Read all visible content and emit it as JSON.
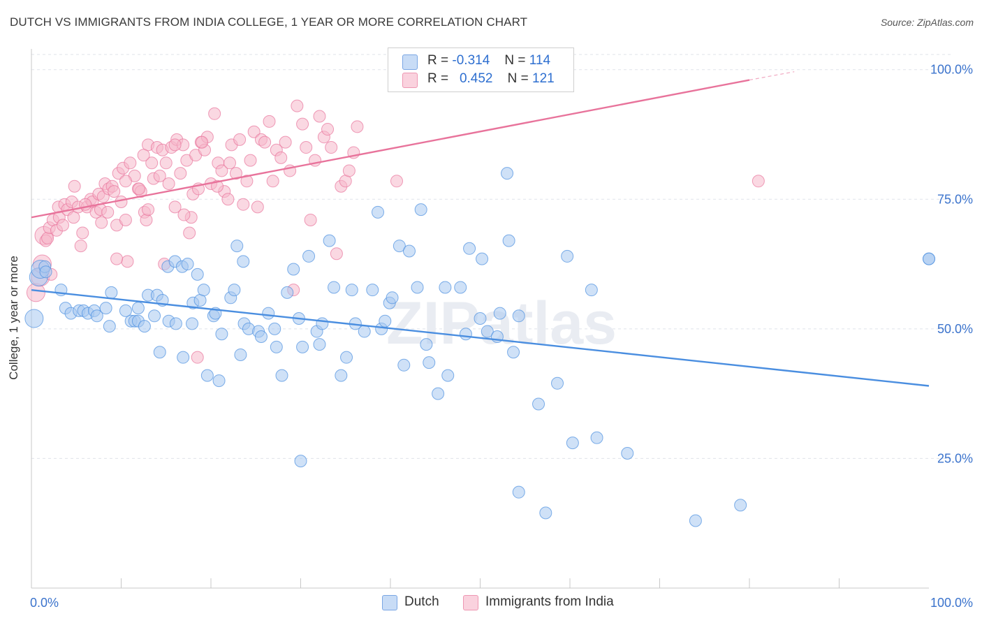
{
  "title": "DUTCH VS IMMIGRANTS FROM INDIA COLLEGE, 1 YEAR OR MORE CORRELATION CHART",
  "source": "Source: ZipAtlas.com",
  "watermark": "ZIPatlas",
  "legend": {
    "rows": [
      {
        "r_label": "R =",
        "r_value": "-0.314",
        "n_label": "N =",
        "n_value": "114",
        "color": "#a8c8f0"
      },
      {
        "r_label": "R =",
        "r_value": "0.452",
        "n_label": "N =",
        "n_value": "121",
        "color": "#f5b8cb"
      }
    ]
  },
  "bottom_legend": [
    {
      "label": "Dutch",
      "color": "#a8c8f0"
    },
    {
      "label": "Immigrants from India",
      "color": "#f5b8cb"
    }
  ],
  "chart_data": {
    "type": "scatter",
    "title": "DUTCH VS IMMIGRANTS FROM INDIA COLLEGE, 1 YEAR OR MORE CORRELATION CHART",
    "xlabel": "",
    "ylabel": "College, 1 year or more",
    "xlim": [
      0,
      100
    ],
    "ylim": [
      0,
      104
    ],
    "x_tick_labels": [
      "0.0%",
      "100.0%"
    ],
    "y_ticks": [
      25,
      50,
      75,
      100
    ],
    "y_tick_labels": [
      "25.0%",
      "50.0%",
      "75.0%",
      "100.0%"
    ],
    "grid": true,
    "legend_position": "top-center",
    "series": [
      {
        "name": "Dutch",
        "color": "#4a8ee0",
        "fill": "#a8c8f0",
        "trend": {
          "x": [
            0,
            100
          ],
          "y": [
            57.5,
            39.0
          ]
        },
        "points": [
          [
            0.3,
            52.0
          ],
          [
            0.8,
            60.0
          ],
          [
            1.0,
            61.5
          ],
          [
            1.5,
            62.0
          ],
          [
            1.6,
            61.0
          ],
          [
            3.3,
            57.5
          ],
          [
            3.8,
            54.0
          ],
          [
            4.4,
            53.0
          ],
          [
            5.3,
            53.5
          ],
          [
            5.8,
            53.5
          ],
          [
            6.3,
            53.0
          ],
          [
            7.0,
            53.5
          ],
          [
            7.3,
            52.5
          ],
          [
            8.3,
            54.0
          ],
          [
            8.7,
            50.5
          ],
          [
            8.9,
            57.0
          ],
          [
            10.5,
            53.5
          ],
          [
            11.1,
            51.5
          ],
          [
            11.5,
            51.5
          ],
          [
            11.9,
            54.0
          ],
          [
            11.9,
            51.5
          ],
          [
            12.6,
            50.5
          ],
          [
            13.0,
            56.5
          ],
          [
            13.7,
            52.5
          ],
          [
            14.0,
            56.5
          ],
          [
            14.3,
            45.5
          ],
          [
            14.6,
            55.5
          ],
          [
            15.2,
            62.0
          ],
          [
            15.3,
            51.5
          ],
          [
            16.0,
            63.0
          ],
          [
            16.1,
            51.0
          ],
          [
            16.8,
            62.0
          ],
          [
            16.9,
            44.5
          ],
          [
            17.4,
            62.5
          ],
          [
            17.9,
            51.0
          ],
          [
            18.0,
            55.0
          ],
          [
            18.5,
            60.5
          ],
          [
            18.8,
            55.5
          ],
          [
            19.2,
            57.5
          ],
          [
            19.6,
            41.0
          ],
          [
            20.3,
            52.5
          ],
          [
            20.5,
            53.0
          ],
          [
            20.9,
            40.0
          ],
          [
            21.2,
            49.0
          ],
          [
            22.2,
            56.0
          ],
          [
            22.6,
            57.5
          ],
          [
            22.9,
            66.0
          ],
          [
            23.3,
            45.0
          ],
          [
            23.6,
            63.0
          ],
          [
            23.7,
            51.0
          ],
          [
            24.2,
            50.0
          ],
          [
            25.3,
            49.5
          ],
          [
            25.6,
            48.5
          ],
          [
            26.4,
            53.0
          ],
          [
            27.1,
            50.0
          ],
          [
            27.3,
            46.5
          ],
          [
            27.9,
            41.0
          ],
          [
            28.5,
            57.0
          ],
          [
            29.2,
            61.5
          ],
          [
            29.8,
            52.0
          ],
          [
            30.2,
            46.5
          ],
          [
            30.9,
            64.0
          ],
          [
            31.8,
            49.5
          ],
          [
            32.1,
            47.0
          ],
          [
            32.4,
            51.0
          ],
          [
            33.2,
            67.0
          ],
          [
            33.7,
            58.0
          ],
          [
            34.5,
            41.0
          ],
          [
            35.1,
            44.5
          ],
          [
            35.7,
            57.5
          ],
          [
            36.1,
            51.0
          ],
          [
            37.1,
            49.5
          ],
          [
            38.0,
            57.5
          ],
          [
            38.6,
            72.5
          ],
          [
            39.0,
            50.0
          ],
          [
            39.4,
            51.5
          ],
          [
            39.9,
            55.0
          ],
          [
            40.2,
            56.0
          ],
          [
            41.0,
            66.0
          ],
          [
            41.5,
            43.0
          ],
          [
            42.1,
            65.0
          ],
          [
            43.0,
            58.0
          ],
          [
            43.4,
            73.0
          ],
          [
            44.0,
            47.0
          ],
          [
            44.3,
            43.5
          ],
          [
            45.3,
            37.5
          ],
          [
            46.1,
            58.0
          ],
          [
            46.4,
            41.0
          ],
          [
            47.8,
            58.0
          ],
          [
            48.4,
            49.0
          ],
          [
            48.8,
            65.5
          ],
          [
            50.0,
            52.0
          ],
          [
            50.2,
            63.5
          ],
          [
            50.8,
            49.5
          ],
          [
            51.9,
            48.5
          ],
          [
            52.2,
            53.0
          ],
          [
            53.0,
            80.0
          ],
          [
            53.2,
            67.0
          ],
          [
            53.7,
            45.5
          ],
          [
            54.3,
            52.5
          ],
          [
            56.5,
            35.5
          ],
          [
            58.6,
            39.5
          ],
          [
            59.7,
            64.0
          ],
          [
            60.3,
            28.0
          ],
          [
            62.4,
            57.5
          ],
          [
            63.0,
            29.0
          ],
          [
            66.4,
            26.0
          ],
          [
            54.3,
            18.5
          ],
          [
            57.3,
            14.5
          ],
          [
            74.0,
            13.0
          ],
          [
            79.0,
            16.0
          ],
          [
            100.0,
            63.5
          ],
          [
            30.0,
            24.5
          ],
          [
            100.0,
            63.5
          ]
        ]
      },
      {
        "name": "Immigrants from India",
        "color": "#e8739b",
        "fill": "#f5b8cb",
        "trend": {
          "x": [
            0,
            80
          ],
          "y": [
            71.5,
            98.0
          ]
        },
        "trend_dashed": {
          "x": [
            80,
            85
          ],
          "y": [
            98.0,
            99.6
          ]
        },
        "points": [
          [
            0.5,
            57.0
          ],
          [
            1.0,
            60.0
          ],
          [
            1.2,
            62.5
          ],
          [
            1.4,
            68.0
          ],
          [
            1.6,
            67.0
          ],
          [
            1.8,
            67.5
          ],
          [
            2.0,
            69.5
          ],
          [
            2.4,
            71.0
          ],
          [
            2.8,
            69.0
          ],
          [
            3.0,
            73.5
          ],
          [
            3.1,
            71.5
          ],
          [
            3.5,
            70.0
          ],
          [
            3.7,
            74.0
          ],
          [
            4.0,
            73.0
          ],
          [
            4.5,
            74.5
          ],
          [
            4.7,
            71.5
          ],
          [
            4.8,
            77.5
          ],
          [
            5.2,
            73.5
          ],
          [
            5.5,
            66.0
          ],
          [
            5.7,
            68.5
          ],
          [
            6.2,
            73.5
          ],
          [
            6.6,
            75.0
          ],
          [
            6.8,
            74.5
          ],
          [
            7.2,
            72.5
          ],
          [
            7.5,
            76.0
          ],
          [
            7.7,
            73.0
          ],
          [
            8.0,
            75.5
          ],
          [
            8.2,
            78.0
          ],
          [
            8.6,
            77.0
          ],
          [
            9.0,
            77.5
          ],
          [
            9.2,
            76.5
          ],
          [
            9.5,
            70.0
          ],
          [
            9.7,
            80.0
          ],
          [
            10.0,
            74.5
          ],
          [
            10.2,
            81.0
          ],
          [
            10.5,
            71.0
          ],
          [
            10.7,
            63.0
          ],
          [
            11.0,
            82.0
          ],
          [
            11.5,
            79.5
          ],
          [
            11.9,
            77.0
          ],
          [
            12.2,
            76.5
          ],
          [
            12.6,
            72.5
          ],
          [
            12.8,
            71.0
          ],
          [
            13.0,
            85.5
          ],
          [
            13.4,
            82.0
          ],
          [
            13.6,
            79.0
          ],
          [
            14.0,
            85.0
          ],
          [
            14.3,
            79.5
          ],
          [
            14.6,
            84.5
          ],
          [
            15.0,
            82.0
          ],
          [
            15.3,
            78.0
          ],
          [
            15.6,
            85.0
          ],
          [
            16.0,
            73.5
          ],
          [
            16.2,
            86.5
          ],
          [
            16.6,
            80.0
          ],
          [
            16.9,
            85.5
          ],
          [
            17.3,
            82.5
          ],
          [
            17.6,
            68.5
          ],
          [
            17.8,
            71.5
          ],
          [
            18.0,
            76.0
          ],
          [
            18.3,
            83.5
          ],
          [
            18.6,
            77.0
          ],
          [
            18.9,
            86.0
          ],
          [
            19.3,
            84.5
          ],
          [
            19.6,
            87.0
          ],
          [
            20.0,
            78.0
          ],
          [
            20.4,
            91.5
          ],
          [
            20.8,
            82.0
          ],
          [
            21.2,
            80.5
          ],
          [
            21.5,
            76.5
          ],
          [
            21.9,
            75.0
          ],
          [
            22.3,
            85.5
          ],
          [
            22.8,
            80.0
          ],
          [
            23.2,
            86.5
          ],
          [
            23.6,
            74.0
          ],
          [
            24.0,
            78.5
          ],
          [
            24.4,
            82.5
          ],
          [
            24.8,
            88.0
          ],
          [
            25.2,
            73.5
          ],
          [
            25.6,
            86.5
          ],
          [
            26.0,
            86.0
          ],
          [
            26.5,
            90.0
          ],
          [
            26.9,
            78.5
          ],
          [
            27.3,
            84.5
          ],
          [
            27.8,
            83.0
          ],
          [
            28.3,
            86.0
          ],
          [
            28.8,
            80.5
          ],
          [
            29.2,
            57.5
          ],
          [
            29.6,
            93.0
          ],
          [
            30.2,
            89.5
          ],
          [
            30.6,
            85.0
          ],
          [
            31.1,
            71.0
          ],
          [
            31.6,
            82.5
          ],
          [
            32.1,
            91.0
          ],
          [
            32.6,
            87.0
          ],
          [
            33.0,
            88.5
          ],
          [
            33.4,
            85.0
          ],
          [
            34.0,
            64.5
          ],
          [
            34.5,
            77.5
          ],
          [
            35.0,
            78.5
          ],
          [
            35.4,
            80.5
          ],
          [
            35.9,
            84.0
          ],
          [
            36.3,
            89.0
          ],
          [
            40.7,
            78.5
          ],
          [
            12.5,
            83.5
          ],
          [
            14.8,
            62.5
          ],
          [
            16.0,
            85.5
          ],
          [
            19.0,
            86.0
          ],
          [
            20.7,
            77.5
          ],
          [
            22.1,
            82.0
          ],
          [
            9.5,
            63.5
          ],
          [
            7.8,
            70.5
          ],
          [
            6.0,
            74.0
          ],
          [
            12.0,
            77.0
          ],
          [
            18.5,
            44.5
          ],
          [
            10.5,
            78.5
          ],
          [
            13.0,
            73.0
          ],
          [
            17.0,
            72.0
          ],
          [
            8.5,
            72.5
          ],
          [
            81.0,
            78.5
          ],
          [
            2.2,
            60.5
          ]
        ]
      }
    ]
  }
}
